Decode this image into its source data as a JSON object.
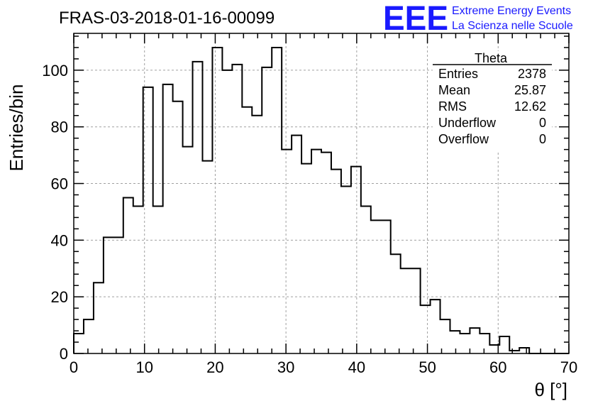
{
  "chart_data": {
    "type": "bar",
    "title": "FRAS-03-2018-01-16-00099",
    "xlabel": "θ [°]",
    "ylabel": "Entries/bin",
    "xlim": [
      0,
      70
    ],
    "ylim": [
      0,
      113
    ],
    "x_ticks": [
      0,
      10,
      20,
      30,
      40,
      50,
      60,
      70
    ],
    "y_ticks": [
      0,
      20,
      40,
      60,
      80,
      100
    ],
    "grid": true,
    "bin_width": 1.4,
    "bin_start": 0,
    "values": [
      7,
      12,
      25,
      41,
      41,
      55,
      52,
      94,
      52,
      95,
      89,
      73,
      103,
      68,
      108,
      100,
      102,
      87,
      84,
      101,
      108,
      72,
      77,
      67,
      72,
      71,
      65,
      59,
      66,
      52,
      47,
      47,
      35,
      30,
      30,
      17,
      19,
      12,
      8,
      7,
      9,
      7,
      3,
      6,
      1,
      2,
      0,
      0,
      0,
      0
    ],
    "stats_box": {
      "name": "Theta",
      "rows": [
        {
          "label": "Entries",
          "value": "2378"
        },
        {
          "label": "Mean",
          "value": "25.87"
        },
        {
          "label": "RMS",
          "value": "12.62"
        },
        {
          "label": "Underflow",
          "value": "0"
        },
        {
          "label": "Overflow",
          "value": "0"
        }
      ]
    }
  },
  "logo": {
    "big": "EEE",
    "line1": "Extreme Energy Events",
    "line2": "La Scienza nelle Scuole"
  },
  "colors": {
    "line": "#000000",
    "grid": "#a0a0a0",
    "logo": "#1a1aff"
  }
}
